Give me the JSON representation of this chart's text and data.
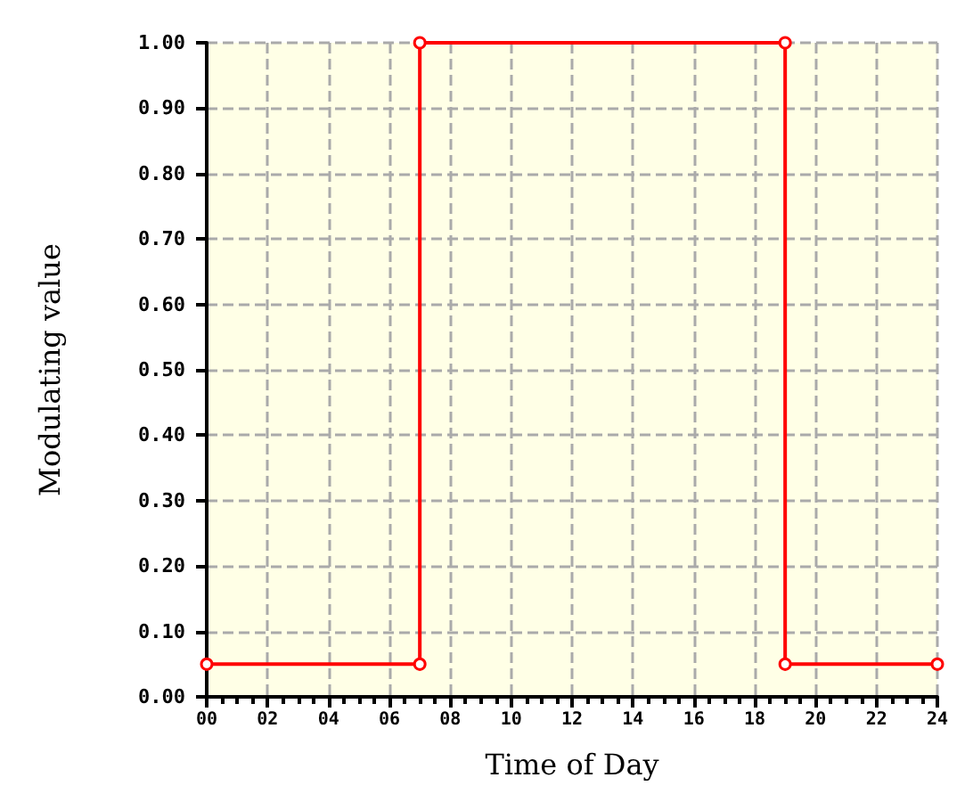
{
  "chart_data": {
    "type": "line",
    "xlabel": "Time of Day",
    "ylabel": "Modulating value",
    "x": [
      0,
      7,
      7,
      19,
      19,
      24
    ],
    "series": [
      {
        "color": "#ff0000",
        "values": [
          0.05,
          0.05,
          1,
          1,
          0.05,
          0.05
        ]
      }
    ],
    "xlim": [
      0,
      24
    ],
    "xticks": [
      {
        "value": 0,
        "label": "00"
      },
      {
        "value": 2,
        "label": "02"
      },
      {
        "value": 4,
        "label": "04"
      },
      {
        "value": 6,
        "label": "06"
      },
      {
        "value": 8,
        "label": "08"
      },
      {
        "value": 10,
        "label": "10"
      },
      {
        "value": 12,
        "label": "12"
      },
      {
        "value": 14,
        "label": "14"
      },
      {
        "value": 16,
        "label": "16"
      },
      {
        "value": 18,
        "label": "18"
      },
      {
        "value": 20,
        "label": "20"
      },
      {
        "value": 22,
        "label": "22"
      },
      {
        "value": 24,
        "label": "24"
      }
    ],
    "ylim": [
      0,
      1
    ],
    "yticks": [
      {
        "value": 0,
        "label": "0.00"
      },
      {
        "value": 0.1,
        "label": "0.10"
      },
      {
        "value": 0.2,
        "label": "0.20"
      },
      {
        "value": 0.3,
        "label": "0.30"
      },
      {
        "value": 0.4,
        "label": "0.40"
      },
      {
        "value": 0.5,
        "label": "0.50"
      },
      {
        "value": 0.6,
        "label": "0.60"
      },
      {
        "value": 0.7,
        "label": "0.70"
      },
      {
        "value": 0.8,
        "label": "0.80"
      },
      {
        "value": 0.9,
        "label": "0.90"
      },
      {
        "value": 1,
        "label": "1.00"
      }
    ],
    "grid": true,
    "marker": "circle",
    "line_style": "solid"
  }
}
